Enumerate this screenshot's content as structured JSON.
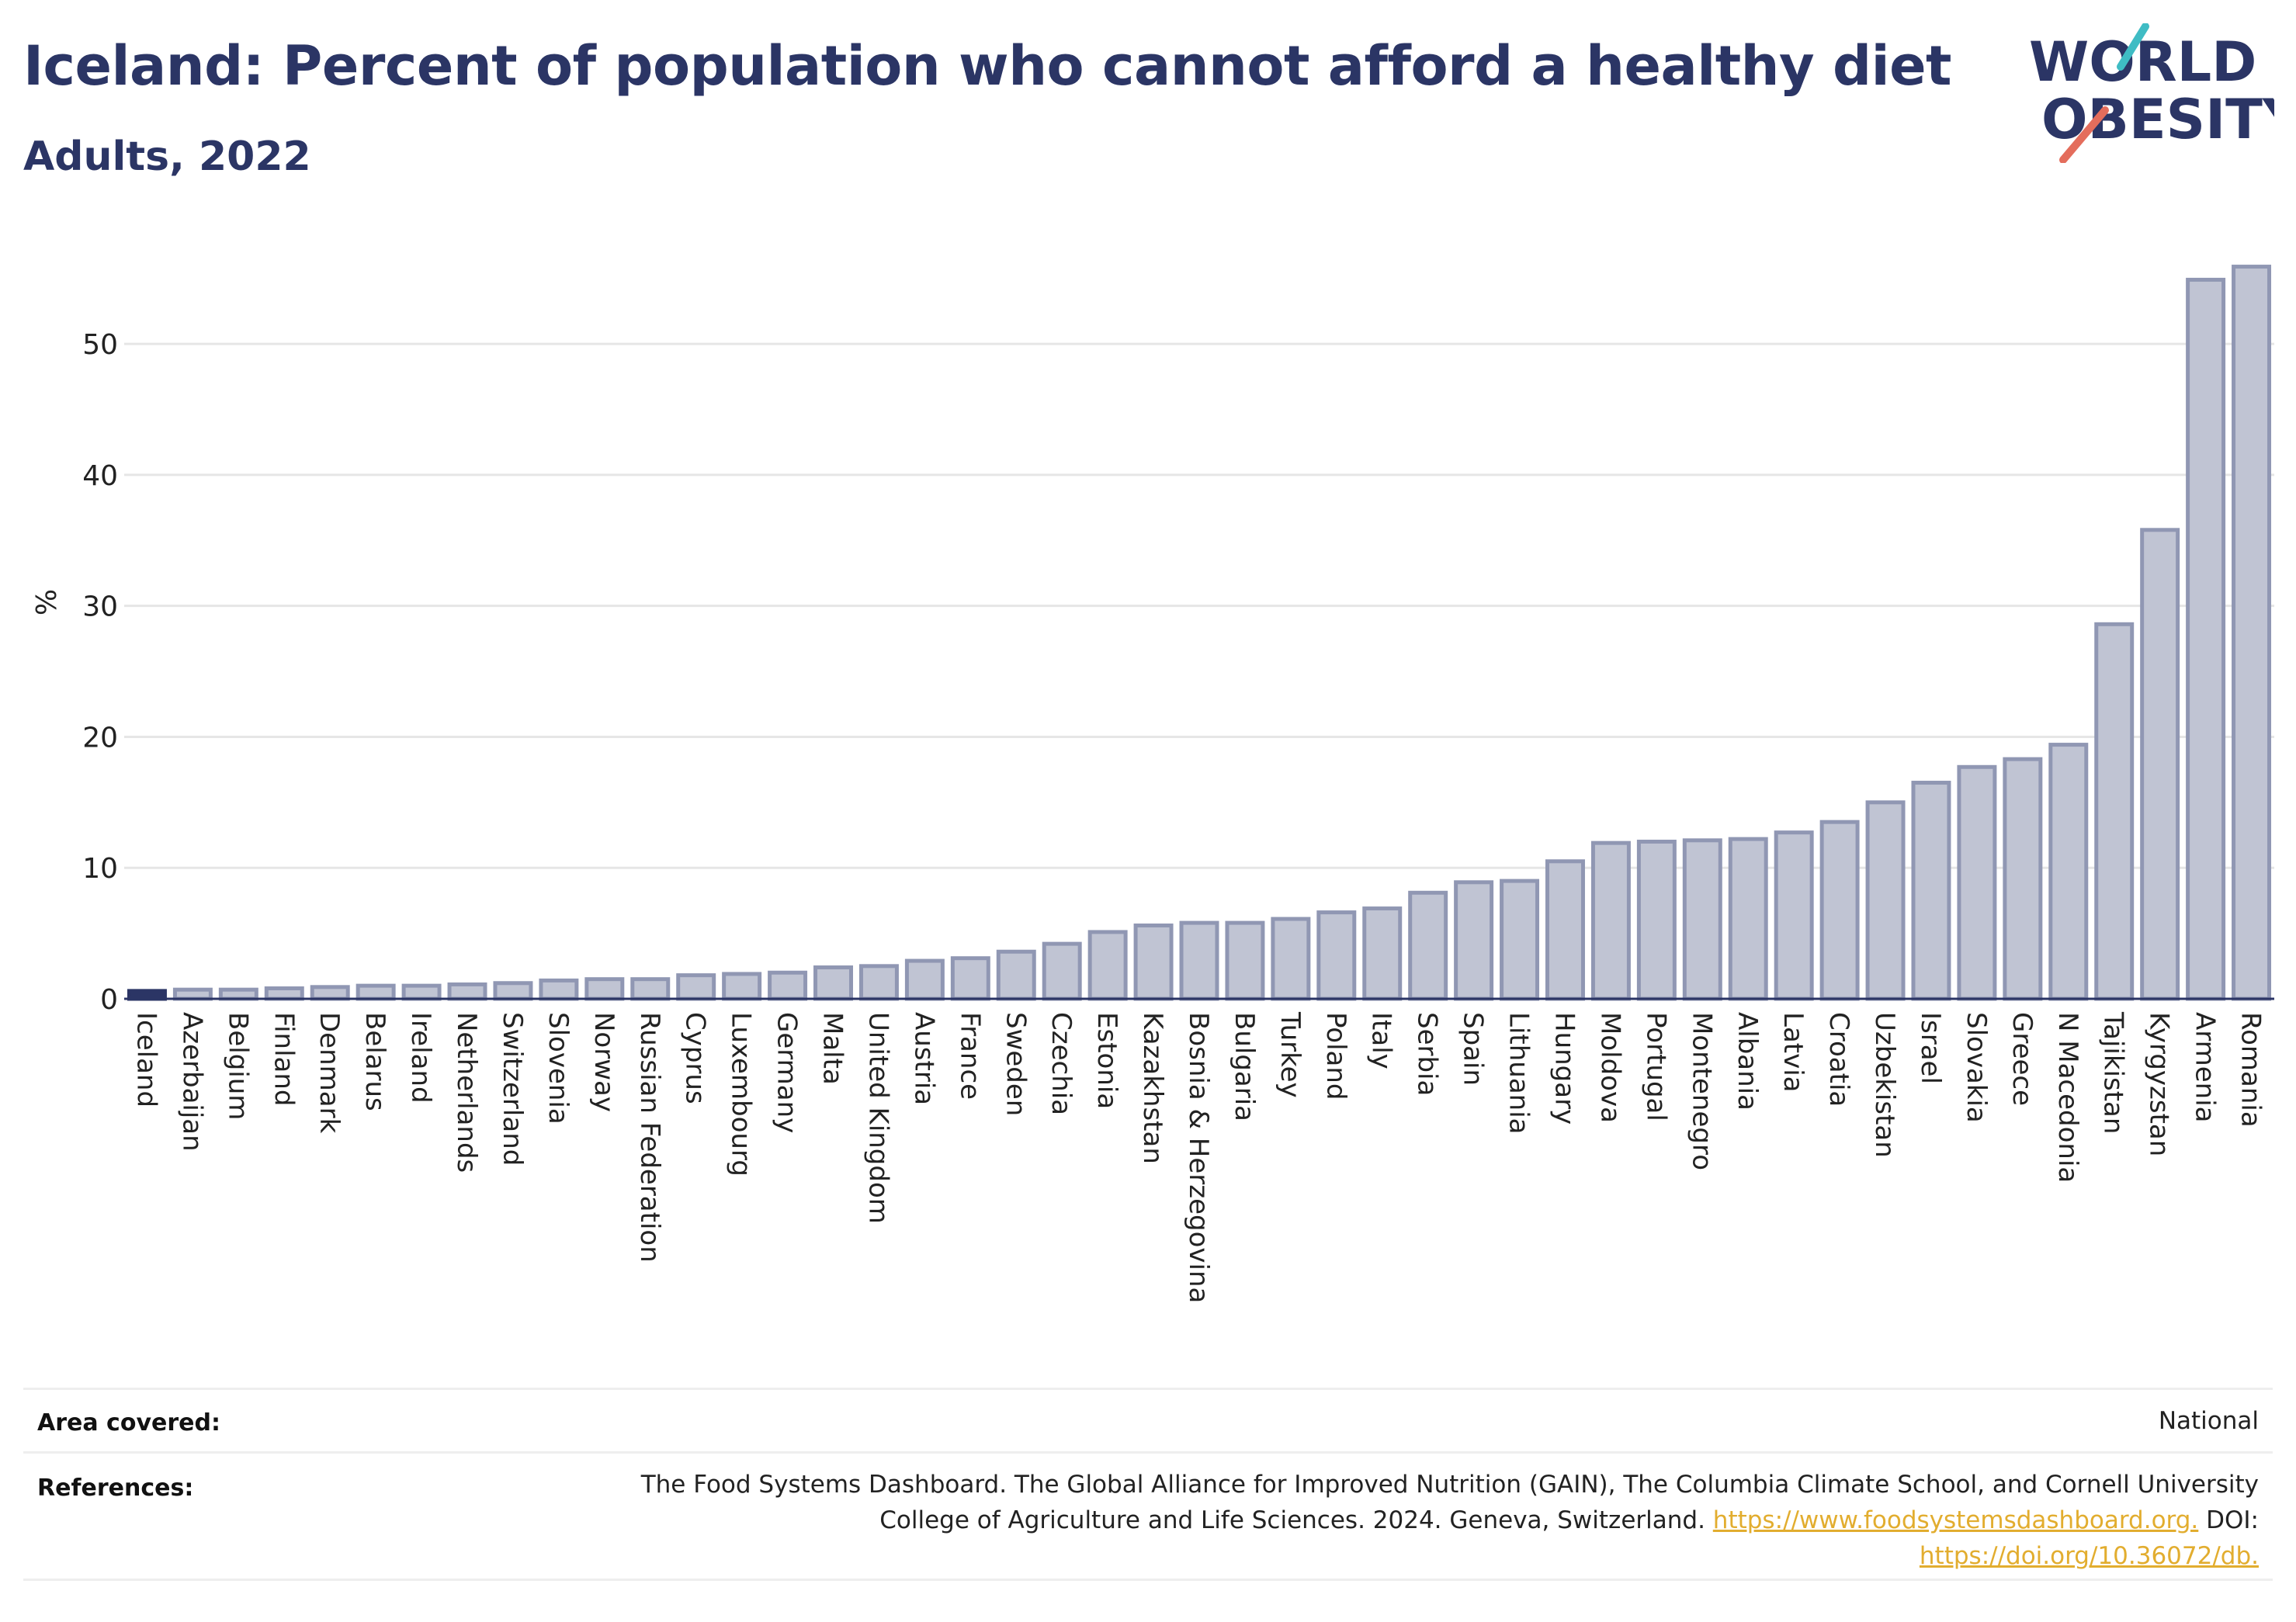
{
  "title": "Iceland: Percent of population who cannot afford a healthy diet",
  "subtitle": "Adults, 2022",
  "logo": {
    "line1": "WORLD",
    "line2": "OBESITY"
  },
  "colors": {
    "highlight": "#2b3565",
    "bar_fill": "#c0c4d3",
    "bar_stroke": "#9097b3",
    "text": "#2b3565",
    "grid": "#e6e6e6",
    "link": "#e2ad2f"
  },
  "chart_data": {
    "type": "bar",
    "title": "Iceland: Percent of population who cannot afford a healthy diet",
    "subtitle": "Adults, 2022",
    "xlabel": "",
    "ylabel": "%",
    "ylim": [
      0,
      57
    ],
    "yticks": [
      0,
      10,
      20,
      30,
      40,
      50
    ],
    "grid": true,
    "highlight": "Iceland",
    "categories": [
      "Iceland",
      "Azerbaijan",
      "Belgium",
      "Finland",
      "Denmark",
      "Belarus",
      "Ireland",
      "Netherlands",
      "Switzerland",
      "Slovenia",
      "Norway",
      "Russian Federation",
      "Cyprus",
      "Luxembourg",
      "Germany",
      "Malta",
      "United Kingdom",
      "Austria",
      "France",
      "Sweden",
      "Czechia",
      "Estonia",
      "Kazakhstan",
      "Bosnia & Herzegovina",
      "Bulgaria",
      "Turkey",
      "Poland",
      "Italy",
      "Serbia",
      "Spain",
      "Lithuania",
      "Hungary",
      "Moldova",
      "Portugal",
      "Montenegro",
      "Albania",
      "Latvia",
      "Croatia",
      "Uzbekistan",
      "Israel",
      "Slovakia",
      "Greece",
      "N Macedonia",
      "Tajikistan",
      "Kyrgyzstan",
      "Armenia",
      "Romania"
    ],
    "values": [
      0.6,
      0.7,
      0.7,
      0.8,
      0.9,
      1.0,
      1.0,
      1.1,
      1.2,
      1.4,
      1.5,
      1.5,
      1.8,
      1.9,
      2.0,
      2.4,
      2.5,
      2.9,
      3.1,
      3.6,
      4.2,
      5.1,
      5.6,
      5.8,
      5.8,
      6.1,
      6.6,
      6.9,
      8.1,
      8.9,
      9.0,
      10.5,
      11.9,
      12.0,
      12.1,
      12.2,
      12.7,
      13.5,
      15.0,
      16.5,
      17.7,
      18.3,
      19.4,
      28.6,
      35.8,
      54.9,
      55.9
    ]
  },
  "footer": {
    "area_label": "Area covered:",
    "area_value": "National",
    "references_label": "References:",
    "references_line1": "The Food Systems Dashboard. The Global Alliance for Improved Nutrition (GAIN), The Columbia Climate School, and Cornell University",
    "references_line2": "College of Agriculture and Life Sciences. 2024. Geneva, Switzerland.",
    "references_link1": "https://www.foodsystemsdashboard.org.",
    "references_doi": "DOI:",
    "references_link2": "https://doi.org/10.36072/db."
  }
}
